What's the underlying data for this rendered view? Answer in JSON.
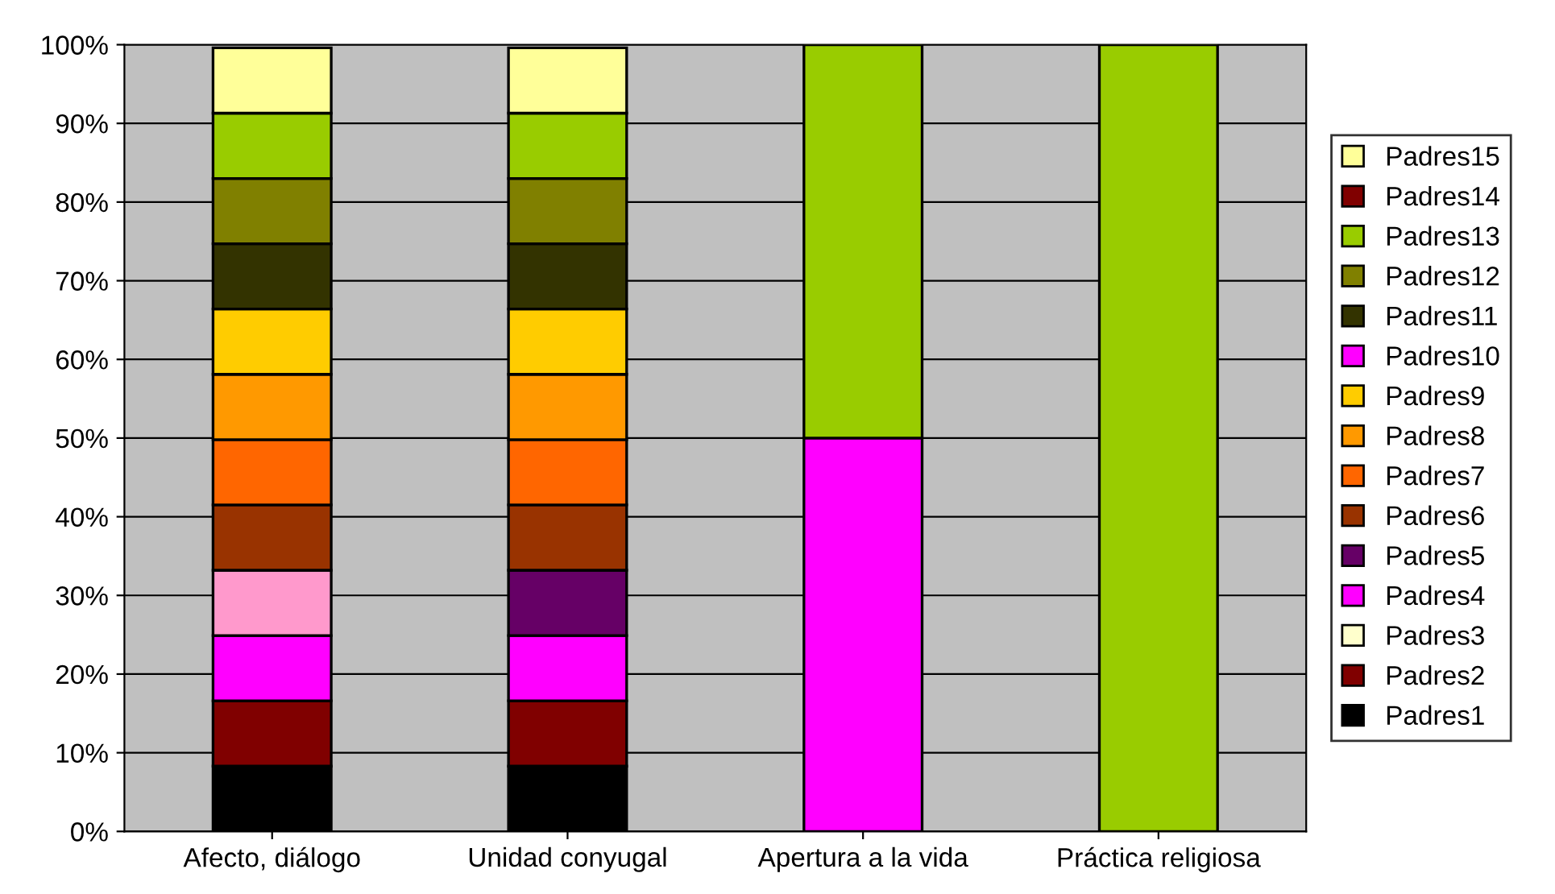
{
  "chart_data": {
    "type": "bar",
    "stacked": true,
    "categories": [
      "Afecto, diálogo",
      "Unidad conyugal",
      "Apertura a la vida",
      "Práctica religiosa"
    ],
    "ylim": [
      0,
      100
    ],
    "yticks": [
      {
        "value": 0,
        "label": "0%"
      },
      {
        "value": 10,
        "label": "10%"
      },
      {
        "value": 20,
        "label": "20%"
      },
      {
        "value": 30,
        "label": "30%"
      },
      {
        "value": 40,
        "label": "40%"
      },
      {
        "value": 50,
        "label": "50%"
      },
      {
        "value": 60,
        "label": "60%"
      },
      {
        "value": 70,
        "label": "70%"
      },
      {
        "value": 80,
        "label": "80%"
      },
      {
        "value": 90,
        "label": "90%"
      },
      {
        "value": 100,
        "label": "100%"
      }
    ],
    "grid": "y",
    "legend": "right",
    "series": [
      {
        "name": "Padres1",
        "color": "#000000",
        "values": [
          8.3,
          8.3,
          0,
          0
        ]
      },
      {
        "name": "Padres2",
        "color": "#800000",
        "values": [
          8.3,
          8.3,
          0,
          0
        ]
      },
      {
        "name": "Padres3",
        "color": "#ffffcc",
        "values": [
          0,
          0,
          0,
          0
        ]
      },
      {
        "name": "Padres4",
        "color": "#ff00ff",
        "values": [
          8.3,
          8.3,
          50,
          0
        ]
      },
      {
        "name": "Padres5",
        "color": "#660066",
        "colors": [
          "#ff99cc",
          "#660066",
          "#660066",
          "#660066"
        ],
        "values": [
          8.3,
          8.3,
          0,
          0
        ]
      },
      {
        "name": "Padres6",
        "color": "#993300",
        "values": [
          8.3,
          8.3,
          0,
          0
        ]
      },
      {
        "name": "Padres7",
        "color": "#ff6600",
        "values": [
          8.3,
          8.3,
          0,
          0
        ]
      },
      {
        "name": "Padres8",
        "color": "#ff9900",
        "values": [
          8.3,
          8.3,
          0,
          0
        ]
      },
      {
        "name": "Padres9",
        "color": "#ffcc00",
        "values": [
          8.3,
          8.3,
          0,
          0
        ]
      },
      {
        "name": "Padres10",
        "color": "#ff00ff",
        "values": [
          0,
          0,
          0,
          0
        ]
      },
      {
        "name": "Padres11",
        "color": "#333300",
        "values": [
          8.3,
          8.3,
          0,
          0
        ]
      },
      {
        "name": "Padres12",
        "color": "#808000",
        "values": [
          8.3,
          8.3,
          0,
          0
        ]
      },
      {
        "name": "Padres13",
        "color": "#99cc00",
        "values": [
          8.3,
          8.3,
          50,
          100
        ]
      },
      {
        "name": "Padres14",
        "color": "#800000",
        "values": [
          0,
          0,
          0,
          0
        ]
      },
      {
        "name": "Padres15",
        "color": "#ffff99",
        "values": [
          8.3,
          8.3,
          0,
          0
        ]
      }
    ]
  }
}
